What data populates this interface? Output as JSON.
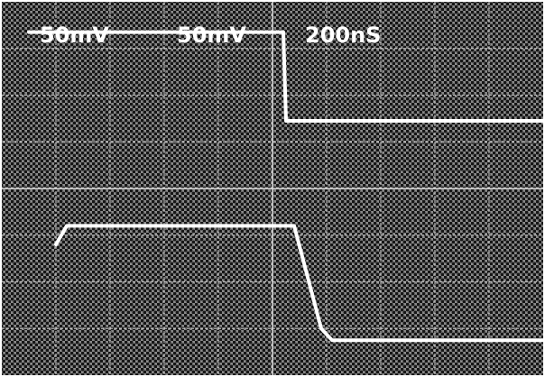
{
  "chart_data": {
    "type": "line",
    "grid": true,
    "grid_divisions": {
      "x": 10,
      "y": 8
    },
    "x_range": [
      0,
      10
    ],
    "y_range": [
      0,
      8
    ],
    "annotations": [
      {
        "name": "channel-1-scale",
        "text": "50mV"
      },
      {
        "name": "channel-2-scale",
        "text": "50mV"
      },
      {
        "name": "timebase",
        "text": "200nS"
      }
    ],
    "series": [
      {
        "x": [
          0.5,
          2.5,
          5.2,
          5.25,
          10
        ],
        "y": [
          7.35,
          7.35,
          7.35,
          5.45,
          5.45
        ]
      },
      {
        "x": [
          1.0,
          1.2,
          5.4,
          5.9,
          6.1,
          10
        ],
        "y": [
          2.8,
          3.2,
          3.2,
          1.0,
          0.75,
          0.75
        ]
      }
    ],
    "colors": {
      "background": "#3a3a3a",
      "dots": "#1a1a1a",
      "grid": "#d8d8d8",
      "trace": "#ffffff"
    }
  }
}
